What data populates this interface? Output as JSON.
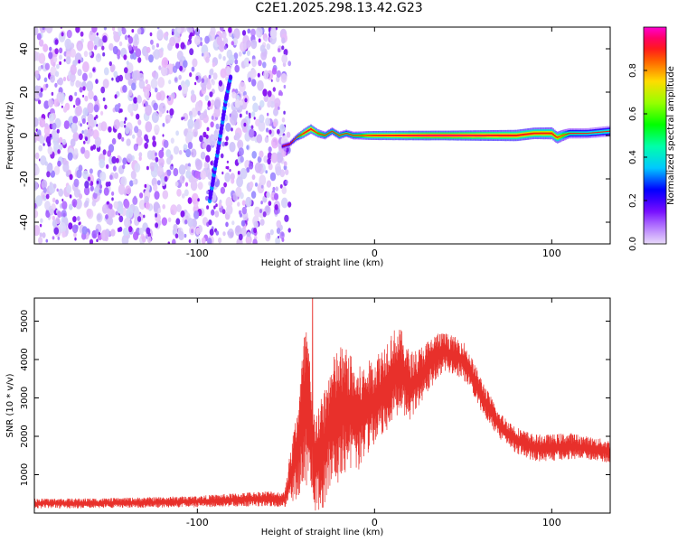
{
  "title": "C2E1.2025.298.13.42.G23",
  "chart_data": [
    {
      "type": "heatmap",
      "name": "spectrogram",
      "xlabel": "Height of straight line (km)",
      "ylabel": "Frequency (Hz)",
      "xlim": [
        -192,
        133
      ],
      "ylim": [
        -50,
        50
      ],
      "xticks": [
        -100,
        0,
        100
      ],
      "yticks": [
        -40,
        -20,
        0,
        20,
        40
      ],
      "noise_region_x": [
        -192,
        -51
      ],
      "noise_density": "dense",
      "streak": {
        "x": [
          -93,
          -90,
          -87,
          -84,
          -81
        ],
        "y": [
          -30,
          -15,
          0,
          16,
          28
        ]
      },
      "ridge": {
        "x": [
          -52,
          -48,
          -44,
          -40,
          -36,
          -32,
          -28,
          -24,
          -20,
          -16,
          -12,
          -8,
          -4,
          0,
          10,
          20,
          30,
          40,
          50,
          60,
          70,
          80,
          90,
          100,
          103,
          106,
          110,
          120,
          133
        ],
        "y": [
          -5,
          -4,
          -1,
          1,
          3,
          1,
          0,
          2,
          0,
          1,
          0,
          0,
          0,
          0,
          0,
          0,
          0,
          0,
          0,
          0,
          0,
          0,
          1,
          1,
          -1,
          0,
          1,
          1,
          2
        ],
        "amplitude": [
          0.25,
          0.25,
          0.45,
          0.85,
          0.9,
          0.7,
          0.6,
          0.55,
          0.6,
          0.55,
          0.6,
          0.65,
          0.8,
          0.85,
          0.9,
          0.95,
          0.98,
          0.99,
          0.97,
          0.95,
          0.92,
          0.9,
          0.85,
          0.85,
          0.8,
          0.7,
          0.5,
          0.45,
          0.45
        ]
      },
      "colorbar": {
        "label": "Normalized spectral amplitude",
        "range": [
          0.0,
          1.0
        ],
        "ticks": [
          "0.0",
          "0.2",
          "0.4",
          "0.6",
          "0.8"
        ],
        "tick_values": [
          0.0,
          0.2,
          0.4,
          0.6,
          0.8
        ],
        "colormap": "rainbow"
      }
    },
    {
      "type": "line",
      "name": "snr",
      "xlabel": "Height of straight line (km)",
      "ylabel": "SNR (10 * v/v)",
      "xlim": [
        -192,
        133
      ],
      "ylim": [
        0,
        5600
      ],
      "xticks": [
        -100,
        0,
        100
      ],
      "yticks": [
        1000,
        2000,
        3000,
        4000,
        5000
      ],
      "color": "#e8302b",
      "envelope": {
        "x": [
          -192,
          -150,
          -100,
          -60,
          -51,
          -44,
          -40,
          -38,
          -35,
          -30,
          -25,
          -20,
          -15,
          -10,
          -5,
          0,
          5,
          10,
          15,
          20,
          25,
          30,
          35,
          40,
          45,
          50,
          55,
          60,
          65,
          70,
          75,
          80,
          90,
          100,
          110,
          120,
          133
        ],
        "mean": [
          250,
          260,
          300,
          380,
          350,
          1500,
          2600,
          2700,
          1400,
          1500,
          2300,
          2600,
          2700,
          2400,
          2700,
          2900,
          3200,
          3600,
          3700,
          3300,
          3500,
          3800,
          4100,
          4200,
          4100,
          4000,
          3600,
          3100,
          2700,
          2300,
          2100,
          1900,
          1700,
          1700,
          1750,
          1700,
          1600
        ],
        "spread": [
          130,
          130,
          150,
          200,
          200,
          1200,
          2000,
          2500,
          1300,
          1500,
          1600,
          1800,
          1600,
          1400,
          1200,
          1200,
          1200,
          1200,
          1100,
          900,
          800,
          700,
          600,
          500,
          500,
          500,
          450,
          450,
          400,
          350,
          350,
          350,
          350,
          350,
          350,
          300,
          300
        ]
      },
      "peak": {
        "x": -35,
        "y": 5600
      }
    }
  ]
}
